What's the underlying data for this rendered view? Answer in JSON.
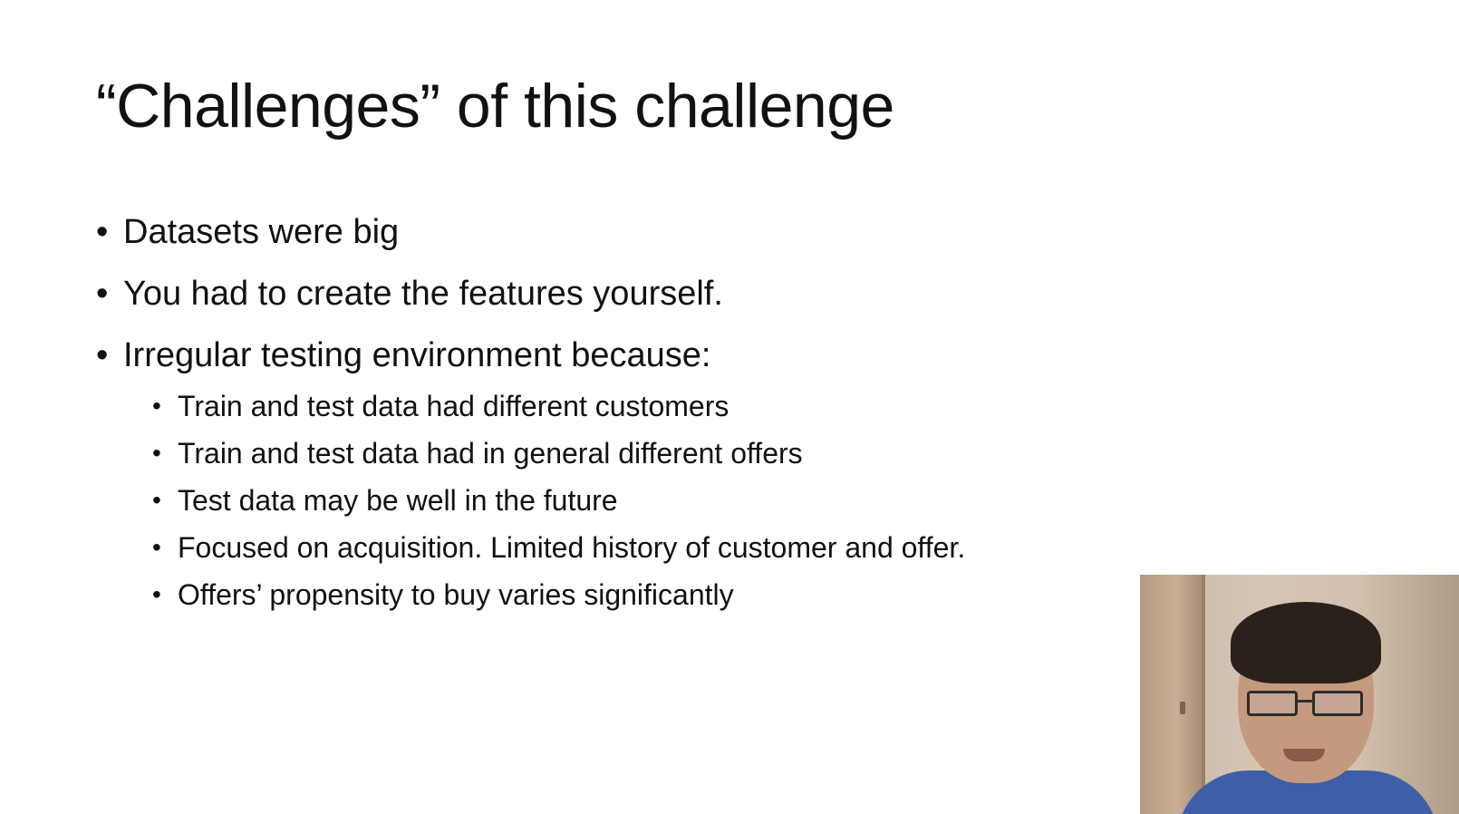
{
  "slide": {
    "title": "“Challenges” of this challenge",
    "bullets": [
      {
        "text": "Datasets were big"
      },
      {
        "text": "You had to create the features yourself."
      },
      {
        "text": "Irregular testing environment because:",
        "sub_bullets": [
          "Train and test data had different customers",
          "Train and test data had in general different offers",
          "Test data may be well in the future",
          "Focused on acquisition. Limited history of customer and offer.",
          "Offers’ propensity to buy varies significantly"
        ]
      }
    ]
  },
  "colors": {
    "background": "#ffffff",
    "text": "#111111",
    "webcam_shirt": "#3d5fa8"
  },
  "webcam": {
    "icon": "presenter-video-icon"
  }
}
